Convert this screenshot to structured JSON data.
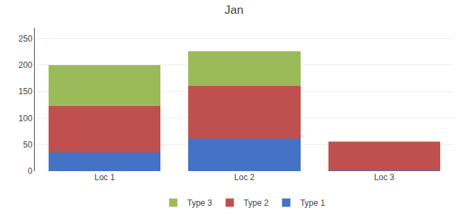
{
  "chart_data": {
    "type": "bar",
    "title": "Jan",
    "categories": [
      "Loc 1",
      "Loc 2",
      "Loc 3"
    ],
    "series": [
      {
        "name": "Type 1",
        "color": "#4472C4",
        "values": [
          35,
          61,
          1
        ]
      },
      {
        "name": "Type 2",
        "color": "#C0504D",
        "values": [
          87,
          99,
          54
        ]
      },
      {
        "name": "Type 3",
        "color": "#9BBB59",
        "values": [
          78,
          66,
          1
        ]
      }
    ],
    "stacked": true,
    "ylim": [
      0,
      270
    ],
    "yticks": [
      0,
      50,
      100,
      150,
      200,
      250
    ],
    "grid": true,
    "legend": "bottom"
  }
}
